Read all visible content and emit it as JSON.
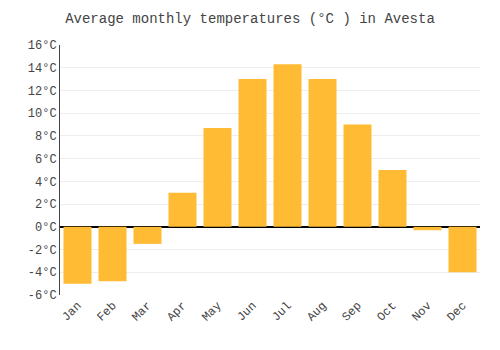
{
  "chart_data": {
    "type": "bar",
    "title": "Average monthly temperatures (°C ) in Avesta",
    "categories": [
      "Jan",
      "Feb",
      "Mar",
      "Apr",
      "May",
      "Jun",
      "Jul",
      "Aug",
      "Sep",
      "Oct",
      "Nov",
      "Dec"
    ],
    "values": [
      -5.0,
      -4.8,
      -1.5,
      3.0,
      8.7,
      13.0,
      14.3,
      13.0,
      9.0,
      5.0,
      -0.3,
      -4.0
    ],
    "color": "#FFBB33",
    "ylim": [
      -6,
      16
    ],
    "yticks": [
      {
        "value": -6,
        "label": "-6°C"
      },
      {
        "value": -4,
        "label": "-4°C"
      },
      {
        "value": -2,
        "label": "-2°C"
      },
      {
        "value": 0,
        "label": "0°C"
      },
      {
        "value": 2,
        "label": "2°C"
      },
      {
        "value": 4,
        "label": "4°C"
      },
      {
        "value": 6,
        "label": "6°C"
      },
      {
        "value": 8,
        "label": "8°C"
      },
      {
        "value": 10,
        "label": "10°C"
      },
      {
        "value": 12,
        "label": "12°C"
      },
      {
        "value": 14,
        "label": "14°C"
      },
      {
        "value": 16,
        "label": "16°C"
      }
    ],
    "grid": true
  }
}
